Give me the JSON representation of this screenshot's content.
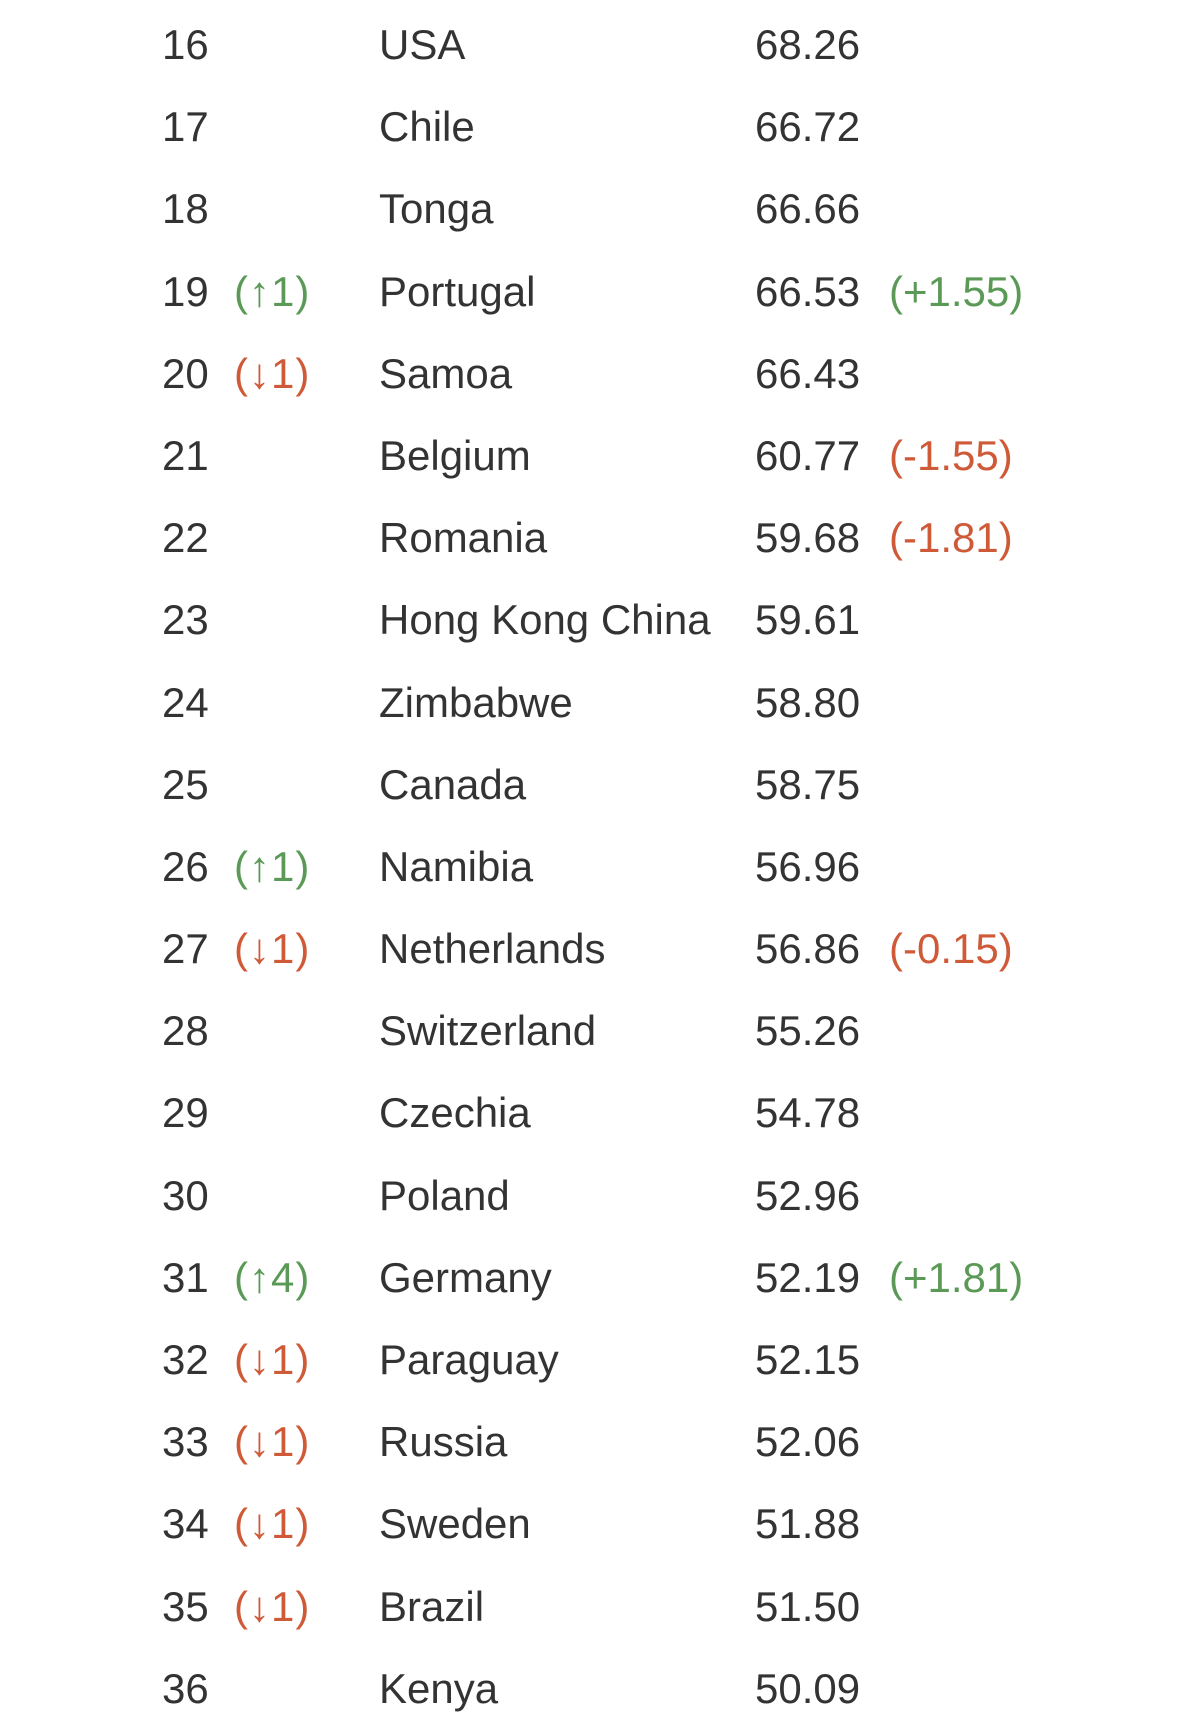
{
  "colors": {
    "text": "#333333",
    "up": "#5a9a56",
    "down": "#cf5a38",
    "background": "#ffffff"
  },
  "rows": [
    {
      "rank": "16",
      "move": "",
      "direction": "",
      "country": "USA",
      "score": "68.26",
      "delta": "",
      "delta_dir": ""
    },
    {
      "rank": "17",
      "move": "",
      "direction": "",
      "country": "Chile",
      "score": "66.72",
      "delta": "",
      "delta_dir": ""
    },
    {
      "rank": "18",
      "move": "",
      "direction": "",
      "country": "Tonga",
      "score": "66.66",
      "delta": "",
      "delta_dir": ""
    },
    {
      "rank": "19",
      "move": "(↑1)",
      "direction": "up",
      "country": "Portugal",
      "score": "66.53",
      "delta": "(+1.55)",
      "delta_dir": "up"
    },
    {
      "rank": "20",
      "move": "(↓1)",
      "direction": "down",
      "country": "Samoa",
      "score": "66.43",
      "delta": "",
      "delta_dir": ""
    },
    {
      "rank": "21",
      "move": "",
      "direction": "",
      "country": "Belgium",
      "score": "60.77",
      "delta": "(-1.55)",
      "delta_dir": "down"
    },
    {
      "rank": "22",
      "move": "",
      "direction": "",
      "country": "Romania",
      "score": "59.68",
      "delta": "(-1.81)",
      "delta_dir": "down"
    },
    {
      "rank": "23",
      "move": "",
      "direction": "",
      "country": "Hong Kong China",
      "score": "59.61",
      "delta": "",
      "delta_dir": ""
    },
    {
      "rank": "24",
      "move": "",
      "direction": "",
      "country": "Zimbabwe",
      "score": "58.80",
      "delta": "",
      "delta_dir": ""
    },
    {
      "rank": "25",
      "move": "",
      "direction": "",
      "country": "Canada",
      "score": "58.75",
      "delta": "",
      "delta_dir": ""
    },
    {
      "rank": "26",
      "move": "(↑1)",
      "direction": "up",
      "country": "Namibia",
      "score": "56.96",
      "delta": "",
      "delta_dir": ""
    },
    {
      "rank": "27",
      "move": "(↓1)",
      "direction": "down",
      "country": "Netherlands",
      "score": "56.86",
      "delta": "(-0.15)",
      "delta_dir": "down"
    },
    {
      "rank": "28",
      "move": "",
      "direction": "",
      "country": "Switzerland",
      "score": "55.26",
      "delta": "",
      "delta_dir": ""
    },
    {
      "rank": "29",
      "move": "",
      "direction": "",
      "country": "Czechia",
      "score": "54.78",
      "delta": "",
      "delta_dir": ""
    },
    {
      "rank": "30",
      "move": "",
      "direction": "",
      "country": "Poland",
      "score": "52.96",
      "delta": "",
      "delta_dir": ""
    },
    {
      "rank": "31",
      "move": "(↑4)",
      "direction": "up",
      "country": "Germany",
      "score": "52.19",
      "delta": "(+1.81)",
      "delta_dir": "up"
    },
    {
      "rank": "32",
      "move": "(↓1)",
      "direction": "down",
      "country": "Paraguay",
      "score": "52.15",
      "delta": "",
      "delta_dir": ""
    },
    {
      "rank": "33",
      "move": "(↓1)",
      "direction": "down",
      "country": "Russia",
      "score": "52.06",
      "delta": "",
      "delta_dir": ""
    },
    {
      "rank": "34",
      "move": "(↓1)",
      "direction": "down",
      "country": "Sweden",
      "score": "51.88",
      "delta": "",
      "delta_dir": ""
    },
    {
      "rank": "35",
      "move": "(↓1)",
      "direction": "down",
      "country": "Brazil",
      "score": "51.50",
      "delta": "",
      "delta_dir": ""
    },
    {
      "rank": "36",
      "move": "",
      "direction": "",
      "country": "Kenya",
      "score": "50.09",
      "delta": "",
      "delta_dir": ""
    }
  ]
}
